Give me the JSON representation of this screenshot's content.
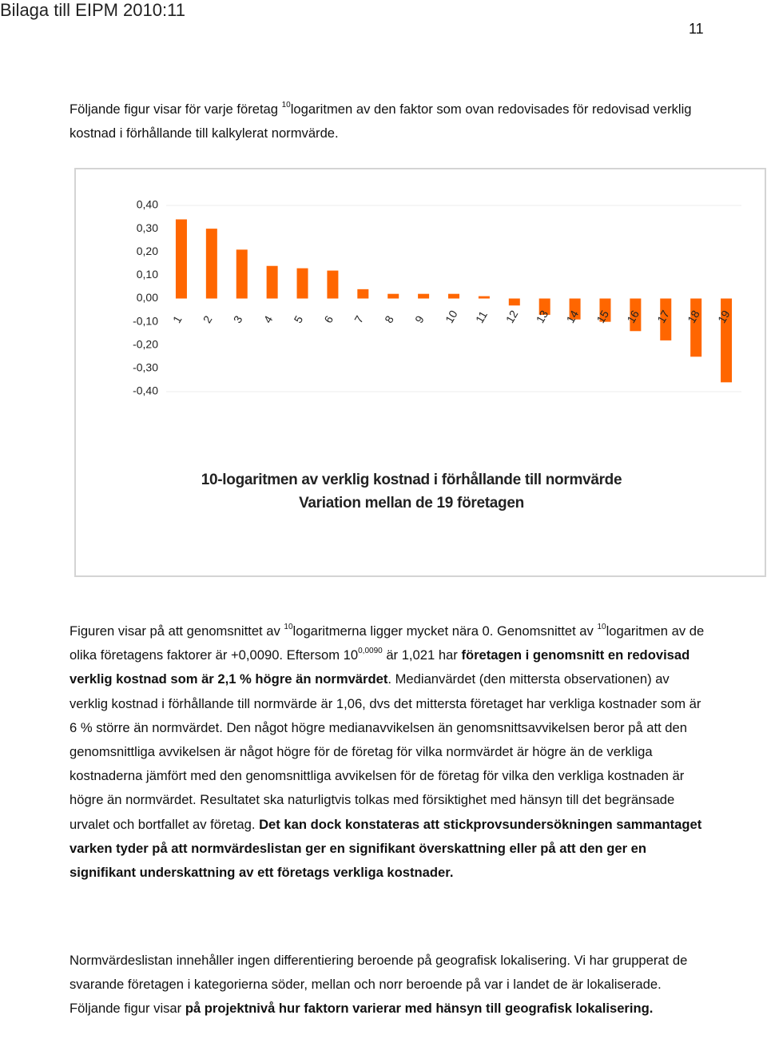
{
  "header": {
    "title": "Bilaga till EIPM 2010:11",
    "page_number": "11"
  },
  "paragraphs": [
    [
      {
        "text": "Följande figur visar för varje företag ",
        "style": "normal"
      },
      {
        "text": "10",
        "style": "sup"
      },
      {
        "text": "logaritmen av den faktor som ovan redovisades för redovisad verklig kostnad i förhållande till kalkylerat normvärde.",
        "style": "normal"
      }
    ],
    [
      {
        "text": "Figuren visar på att genomsnittet av ",
        "style": "normal"
      },
      {
        "text": "10",
        "style": "sup"
      },
      {
        "text": "logaritmerna ligger mycket nära 0. Genomsnittet av ",
        "style": "normal"
      },
      {
        "text": "10",
        "style": "sup"
      },
      {
        "text": "logaritmen av de olika företagens faktorer är +0,0090. Eftersom 10",
        "style": "normal"
      },
      {
        "text": "0,0090",
        "style": "sup"
      },
      {
        "text": " är 1,021 har ",
        "style": "normal"
      },
      {
        "text": "företagen i genomsnitt en redovisad verklig kostnad som är 2,1 % högre än normvärdet",
        "style": "bold"
      },
      {
        "text": ". Medianvärdet (den mittersta observationen) av verklig kostnad i förhållande till normvärde är 1,06, dvs det mittersta företaget har verkliga kostnader som är 6 % större än normvärdet. Den något högre medianavvikelsen än genomsnittsavvikelsen beror på att den genomsnittliga avvikelsen är något högre för de företag för vilka normvärdet är högre än de verkliga kostnaderna jämfört med den genomsnittliga avvikelsen för de företag för vilka den verkliga kostnaden är högre än normvärdet. Resultatet ska naturligtvis tolkas med försiktighet med hänsyn till det begränsade urvalet och bortfallet av företag. ",
        "style": "normal"
      },
      {
        "text": "Det kan dock konstateras att stickprovsundersökningen sammantaget varken tyder på att normvärdeslistan ger en signifikant överskattning eller på att den ger en signifikant underskattning av ett företags verkliga kostnader.",
        "style": "bold"
      }
    ],
    [
      {
        "text": "Normvärdeslistan innehåller ingen differentiering beroende på geografisk lokalisering. Vi har grupperat de svarande företagen i kategorierna söder, mellan och norr beroende på var i landet de är lokaliserade. Följande figur visar ",
        "style": "normal"
      },
      {
        "text": "på projektnivå hur faktorn varierar med hänsyn till geografisk lokalisering.",
        "style": "bold"
      }
    ]
  ],
  "chart_data": {
    "type": "bar",
    "title": "10-logaritmen av verklig kostnad i förhållande till normvärde",
    "subtitle": "Variation mellan de 19 företagen",
    "categories": [
      "1",
      "2",
      "3",
      "4",
      "5",
      "6",
      "7",
      "8",
      "9",
      "10",
      "11",
      "12",
      "13",
      "14",
      "15",
      "16",
      "17",
      "18",
      "19"
    ],
    "values": [
      0.34,
      0.3,
      0.21,
      0.14,
      0.13,
      0.12,
      0.04,
      0.02,
      0.02,
      0.02,
      0.01,
      -0.03,
      -0.07,
      -0.09,
      -0.1,
      -0.14,
      -0.18,
      -0.25,
      -0.36
    ],
    "color": "#ff6600",
    "ylim": [
      -0.4,
      0.4
    ],
    "yticks": [
      {
        "value": 0.4,
        "label": "0,40"
      },
      {
        "value": 0.3,
        "label": "0,30"
      },
      {
        "value": 0.2,
        "label": "0,20"
      },
      {
        "value": 0.1,
        "label": "0,10"
      },
      {
        "value": 0,
        "label": "0,00"
      },
      {
        "value": -0.1,
        "label": "-0,10"
      },
      {
        "value": -0.2,
        "label": "-0,20"
      },
      {
        "value": -0.3,
        "label": "-0,30"
      },
      {
        "value": -0.4,
        "label": "-0,40"
      }
    ],
    "grid": false
  }
}
